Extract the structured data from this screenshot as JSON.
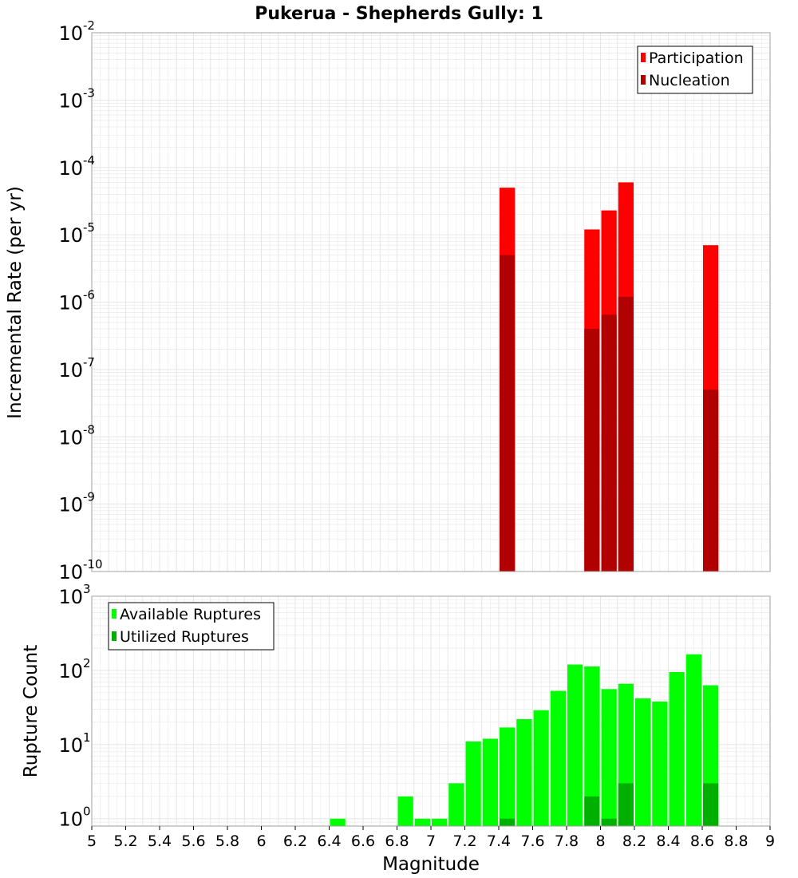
{
  "title": "Pukerua - Shepherds Gully: 1",
  "xlabel": "Magnitude",
  "colors": {
    "participation": "#ff0000",
    "nucleation": "#b00000",
    "available": "#00ff00",
    "utilized": "#00b000",
    "grid": "#e6e6e6",
    "frame": "#a0a0a0"
  },
  "chart_data": [
    {
      "type": "bar",
      "title": "Pukerua - Shepherds Gully: 1",
      "ylabel": "Incremental Rate (per yr)",
      "yscale": "log",
      "ylim_exp": [
        -10,
        -2
      ],
      "xlim": [
        5,
        9
      ],
      "grid": true,
      "legend_position": "top-right",
      "series": [
        {
          "name": "Participation",
          "color": "#ff0000",
          "points": [
            [
              7.45,
              5e-05
            ],
            [
              7.95,
              1.2e-05
            ],
            [
              8.05,
              2.3e-05
            ],
            [
              8.15,
              6e-05
            ],
            [
              8.65,
              7e-06
            ]
          ]
        },
        {
          "name": "Nucleation",
          "color": "#b00000",
          "points": [
            [
              7.45,
              5e-06
            ],
            [
              7.95,
              4e-07
            ],
            [
              8.05,
              6.5e-07
            ],
            [
              8.15,
              1.2e-06
            ],
            [
              8.65,
              5e-08
            ]
          ]
        }
      ]
    },
    {
      "type": "bar",
      "ylabel": "Rupture Count",
      "xlabel": "Magnitude",
      "yscale": "log",
      "ylim_exp": [
        -0.1,
        3
      ],
      "xlim": [
        5,
        9
      ],
      "xticks": [
        "5",
        "5.2",
        "5.4",
        "5.6",
        "5.8",
        "6",
        "6.2",
        "6.4",
        "6.6",
        "6.8",
        "7",
        "7.2",
        "7.4",
        "7.6",
        "7.8",
        "8",
        "8.2",
        "8.4",
        "8.6",
        "8.8",
        "9"
      ],
      "grid": true,
      "legend_position": "top-left",
      "series": [
        {
          "name": "Available Ruptures",
          "color": "#00ff00",
          "points": [
            [
              6.45,
              1
            ],
            [
              6.85,
              2
            ],
            [
              6.95,
              1
            ],
            [
              7.05,
              1
            ],
            [
              7.15,
              3
            ],
            [
              7.25,
              11
            ],
            [
              7.35,
              12
            ],
            [
              7.45,
              17
            ],
            [
              7.55,
              22
            ],
            [
              7.65,
              29
            ],
            [
              7.75,
              53
            ],
            [
              7.85,
              120
            ],
            [
              7.95,
              113
            ],
            [
              8.05,
              56
            ],
            [
              8.15,
              66
            ],
            [
              8.25,
              42
            ],
            [
              8.35,
              38
            ],
            [
              8.45,
              95
            ],
            [
              8.55,
              165
            ],
            [
              8.65,
              63
            ]
          ]
        },
        {
          "name": "Utilized Ruptures",
          "color": "#00b000",
          "points": [
            [
              7.45,
              1
            ],
            [
              7.95,
              2
            ],
            [
              8.05,
              1
            ],
            [
              8.15,
              3
            ],
            [
              8.65,
              3
            ]
          ]
        }
      ]
    }
  ]
}
